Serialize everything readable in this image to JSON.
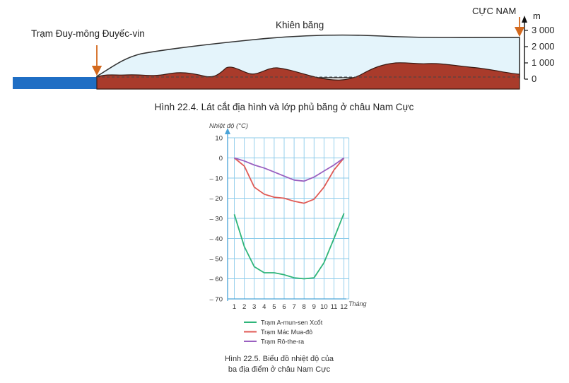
{
  "chart_data": [
    {
      "type": "area",
      "labels": {
        "station": "Trạm Đuy-mông Đuyếc-vin",
        "ice": "Khiên băng",
        "pole": "CỰC NAM"
      },
      "y_unit": "m",
      "y_ticks": [
        "0",
        "1 000",
        "2 000",
        "3 000"
      ],
      "caption": "Hình 22.4. Lát cắt địa hình và lớp phủ băng ở châu Nam Cực",
      "colors": {
        "sea": "#1f6ec4",
        "rock": "#a93b2b",
        "ice": "#e4f4fb",
        "arrow": "#d3691e"
      }
    },
    {
      "type": "line",
      "ylabel": "Nhiệt độ (°C)",
      "xlabel": "Tháng",
      "x": [
        1,
        2,
        3,
        4,
        5,
        6,
        7,
        8,
        9,
        10,
        11,
        12
      ],
      "ylim": [
        -70,
        10
      ],
      "y_ticks": [
        "10",
        "0",
        "– 10",
        "– 20",
        "– 30",
        "– 40",
        "– 50",
        "– 60",
        "– 70"
      ],
      "grid": true,
      "legend_position": "bottom",
      "series": [
        {
          "name": "Trạm A-mun-sen Xcốt",
          "color": "#2fb57a",
          "values": [
            -28,
            -44,
            -54,
            -57,
            -57,
            -58,
            -59.5,
            -60,
            -59.5,
            -52,
            -40,
            -27.5
          ]
        },
        {
          "name": "Trạm Mác Mua-đô",
          "color": "#e05a55",
          "values": [
            0,
            -4,
            -14.5,
            -18,
            -19.5,
            -20,
            -21.5,
            -22.5,
            -20.5,
            -14.5,
            -6,
            0
          ]
        },
        {
          "name": "Trạm Rô-the-ra",
          "color": "#9a60c0",
          "values": [
            0,
            -1.5,
            -3.5,
            -5,
            -7,
            -9,
            -11,
            -11.5,
            -9.5,
            -6.5,
            -3.5,
            0
          ]
        }
      ],
      "caption_lines": [
        "Hình 22.5. Biểu đồ nhiệt độ của",
        "ba địa điểm ở châu Nam Cực"
      ]
    }
  ]
}
